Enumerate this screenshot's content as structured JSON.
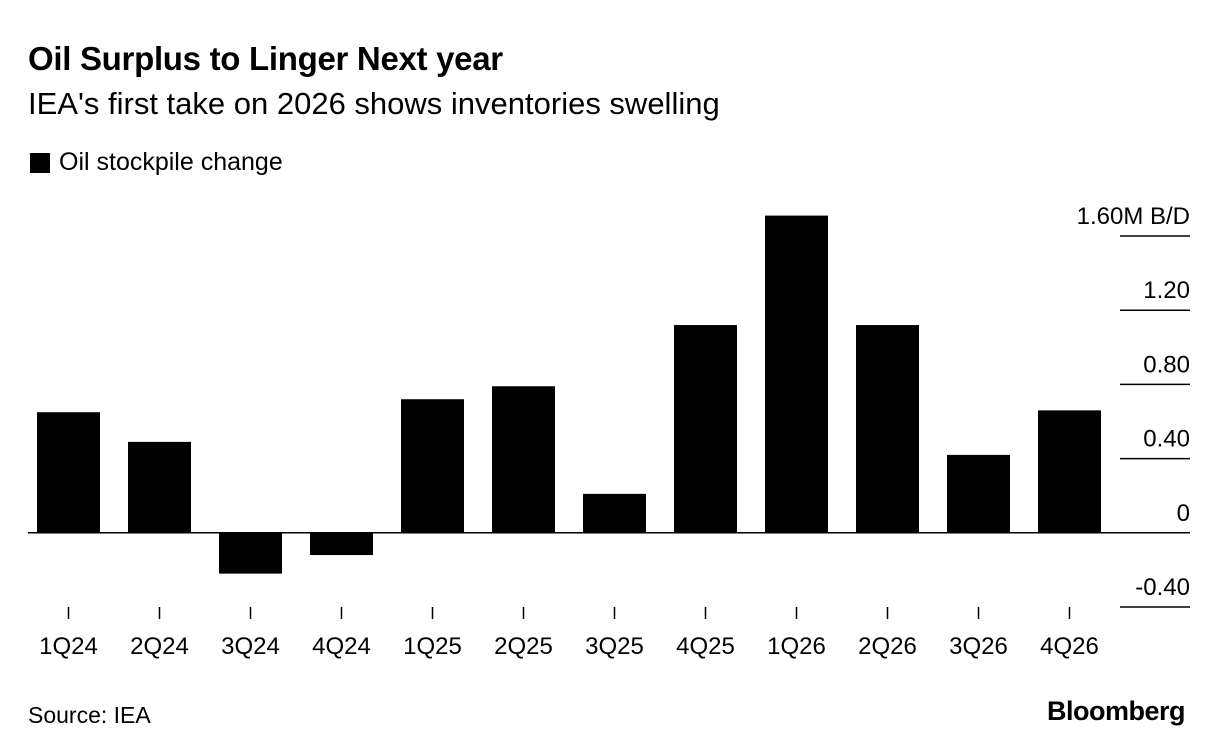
{
  "header": {
    "title": "Oil Surplus to Linger Next year",
    "subtitle": "IEA's first take on 2026 shows inventories swelling"
  },
  "legend": {
    "label": "Oil stockpile change"
  },
  "footer": {
    "source": "Source: IEA",
    "brand": "Bloomberg"
  },
  "colors": {
    "bar": "#000000",
    "axis": "#000000",
    "background": "#ffffff"
  },
  "chart_data": {
    "type": "bar",
    "title": "Oil Surplus to Linger Next year",
    "subtitle": "IEA's first take on 2026 shows inventories swelling",
    "xlabel": "",
    "ylabel": "M B/D",
    "categories": [
      "1Q24",
      "2Q24",
      "3Q24",
      "4Q24",
      "1Q25",
      "2Q25",
      "3Q25",
      "4Q25",
      "1Q26",
      "2Q26",
      "3Q26",
      "4Q26"
    ],
    "series": [
      {
        "name": "Oil stockpile change",
        "values": [
          0.65,
          0.49,
          -0.22,
          -0.12,
          0.72,
          0.79,
          0.21,
          1.12,
          1.71,
          1.12,
          0.42,
          0.66
        ]
      }
    ],
    "ylim": [
      -0.4,
      1.6
    ],
    "yticks": [
      1.6,
      1.2,
      0.8,
      0.4,
      0,
      -0.4
    ],
    "ytick_labels": [
      "1.60M B/D",
      "1.20",
      "0.80",
      "0.40",
      "0",
      "-0.40"
    ],
    "grid": false,
    "legend_position": "top-left"
  }
}
